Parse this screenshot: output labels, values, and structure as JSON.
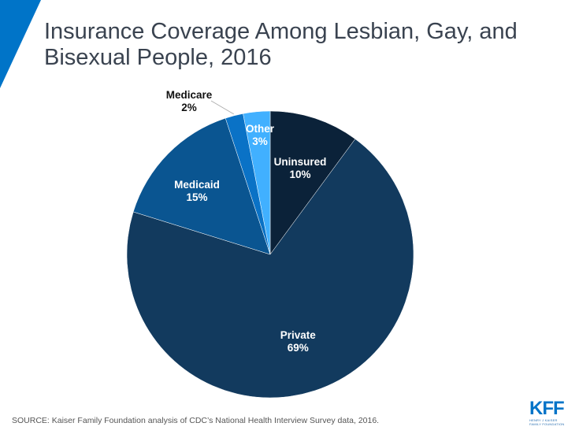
{
  "title": "Insurance Coverage Among Lesbian, Gay, and Bisexual People, 2016",
  "source": "SOURCE: Kaiser Family Foundation analysis of CDC’s National Health Interview  Survey data, 2016.",
  "logo": {
    "main": "KFF",
    "line1": "HENRY J KAISER",
    "line2": "FAMILY FOUNDATION"
  },
  "colors": {
    "accent": "#0074c8",
    "title": "#3a4350"
  },
  "chart_data": {
    "type": "pie",
    "title": "Insurance Coverage Among Lesbian, Gay, and Bisexual People, 2016",
    "start": "12 o'clock, clockwise",
    "slices": [
      {
        "label": "Uninsured",
        "value": 10,
        "display": "10%",
        "color": "#0b2239",
        "label_color": "#ffffff"
      },
      {
        "label": "Private",
        "value": 69,
        "display": "69%",
        "color": "#123a5e",
        "label_color": "#ffffff"
      },
      {
        "label": "Medicaid",
        "value": 15,
        "display": "15%",
        "color": "#0a5591",
        "label_color": "#ffffff"
      },
      {
        "label": "Medicare",
        "value": 2,
        "display": "2%",
        "color": "#0a72c6",
        "label_color": "#111111",
        "outside_label": true
      },
      {
        "label": "Other",
        "value": 3,
        "display": "3%",
        "color": "#41b0ff",
        "label_color": "#ffffff"
      }
    ]
  }
}
